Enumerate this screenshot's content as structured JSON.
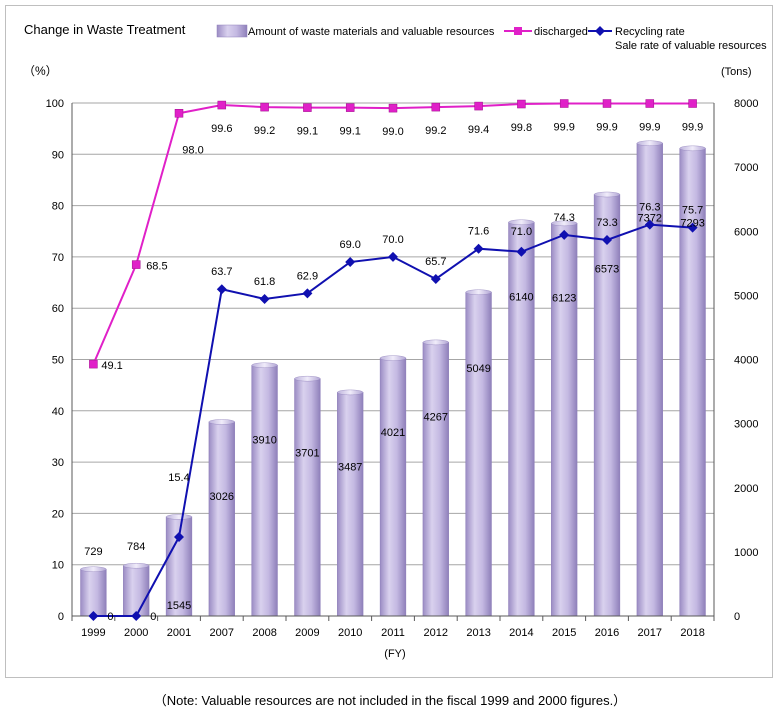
{
  "note": "（Note: Valuable resources are not included in the fiscal 1999 and 2000 figures.）",
  "chart_data": {
    "type": "bar+line",
    "title": "Change in Waste Treatment",
    "categories": [
      "1999",
      "2000",
      "2001",
      "2007",
      "2008",
      "2009",
      "2010",
      "2011",
      "2012",
      "2013",
      "2014",
      "2015",
      "2016",
      "2017",
      "2018"
    ],
    "xlabel": "(FY)",
    "ylabel_left": "（%）",
    "ylabel_right": "(Tons)",
    "ylim_left": [
      0,
      100
    ],
    "yticks_left": [
      0,
      10,
      20,
      30,
      40,
      50,
      60,
      70,
      80,
      90,
      100
    ],
    "ylim_right": [
      0,
      8000
    ],
    "yticks_right": [
      0,
      1000,
      2000,
      3000,
      4000,
      5000,
      6000,
      7000,
      8000
    ],
    "grid": true,
    "legend_position": "top",
    "series": [
      {
        "name": "Amount of waste materials and valuable resources",
        "kind": "bar",
        "axis": "right",
        "color": "#b3a7d3",
        "values": [
          729,
          784,
          1545,
          3026,
          3910,
          3701,
          3487,
          4021,
          4267,
          5049,
          6140,
          6123,
          6573,
          7372,
          7293
        ],
        "labels": [
          "729",
          "784",
          "1545",
          "3026",
          "3910",
          "3701",
          "3487",
          "4021",
          "4267",
          "5049",
          "6140",
          "6123",
          "6573",
          "7372",
          "7293"
        ]
      },
      {
        "name": "discharged",
        "kind": "line",
        "axis": "left",
        "color": "#e020c8",
        "marker": "square",
        "values": [
          49.1,
          68.5,
          98.0,
          99.6,
          99.2,
          99.1,
          99.1,
          99.0,
          99.2,
          99.4,
          99.8,
          99.9,
          99.9,
          99.9,
          99.9
        ],
        "labels": [
          "49.1",
          "68.5",
          "98.0",
          "99.6",
          "99.2",
          "99.1",
          "99.1",
          "99.0",
          "99.2",
          "99.4",
          "99.8",
          "99.9",
          "99.9",
          "99.9",
          "99.9"
        ]
      },
      {
        "name": "Recycling rate",
        "subtitle": "Sale rate of valuable resources",
        "kind": "line",
        "axis": "left",
        "color": "#1010b0",
        "marker": "diamond",
        "values": [
          0,
          0,
          15.4,
          63.7,
          61.8,
          62.9,
          69.0,
          70.0,
          65.7,
          71.6,
          71.0,
          74.3,
          73.3,
          76.3,
          75.7
        ],
        "labels": [
          "0",
          "0",
          "15.4",
          "63.7",
          "61.8",
          "62.9",
          "69.0",
          "70.0",
          "65.7",
          "71.6",
          "71.0",
          "74.3",
          "73.3",
          "76.3",
          "75.7"
        ]
      }
    ]
  }
}
